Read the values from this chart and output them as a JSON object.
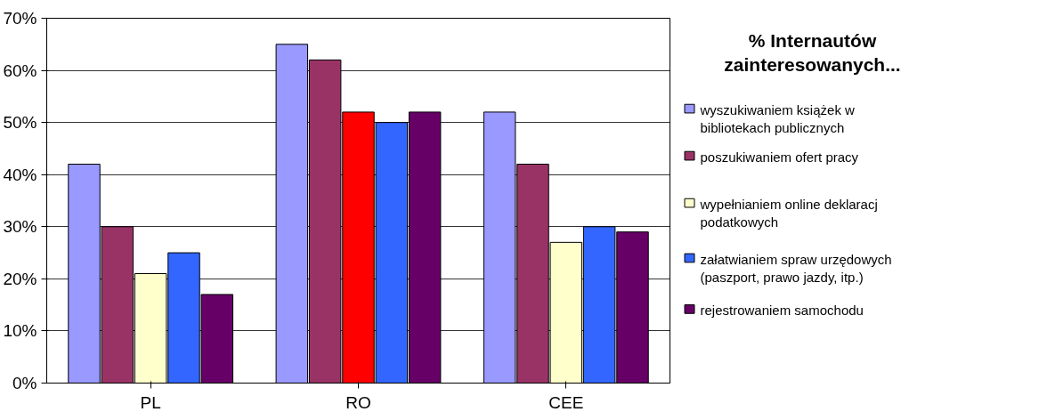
{
  "chart_data": {
    "type": "bar",
    "legend_title": "% Internautów zainteresowanych...",
    "categories": [
      "PL",
      "RO",
      "CEE"
    ],
    "series": [
      {
        "name": "wyszukiwaniem książek w bibliotekach publicznych",
        "color": "#9999ff",
        "values": [
          42,
          65,
          52
        ]
      },
      {
        "name": "poszukiwaniem ofert pracy",
        "color": "#993366",
        "values": [
          30,
          62,
          42
        ]
      },
      {
        "name": "wypełnianiem online deklaracj podatkowych",
        "color": "#ffffcc",
        "colors": [
          "#ffffcc",
          "#ff0000",
          "#ffffcc"
        ],
        "values": [
          21,
          52,
          27
        ]
      },
      {
        "name": "załatwianiem spraw urzędowych (paszport, prawo jazdy, itp.)",
        "color": "#3366ff",
        "values": [
          25,
          50,
          30
        ]
      },
      {
        "name": "rejestrowaniem samochodu",
        "color": "#660066",
        "values": [
          17,
          52,
          29
        ]
      }
    ],
    "ylim": [
      0,
      70
    ],
    "yticks": [
      {
        "value": 0,
        "label": "0%"
      },
      {
        "value": 10,
        "label": "10%"
      },
      {
        "value": 20,
        "label": "20%"
      },
      {
        "value": 30,
        "label": "30%"
      },
      {
        "value": 40,
        "label": "40%"
      },
      {
        "value": 50,
        "label": "50%"
      },
      {
        "value": 60,
        "label": "60%"
      },
      {
        "value": 70,
        "label": "70%"
      }
    ],
    "grid": "y",
    "legend": "right"
  }
}
